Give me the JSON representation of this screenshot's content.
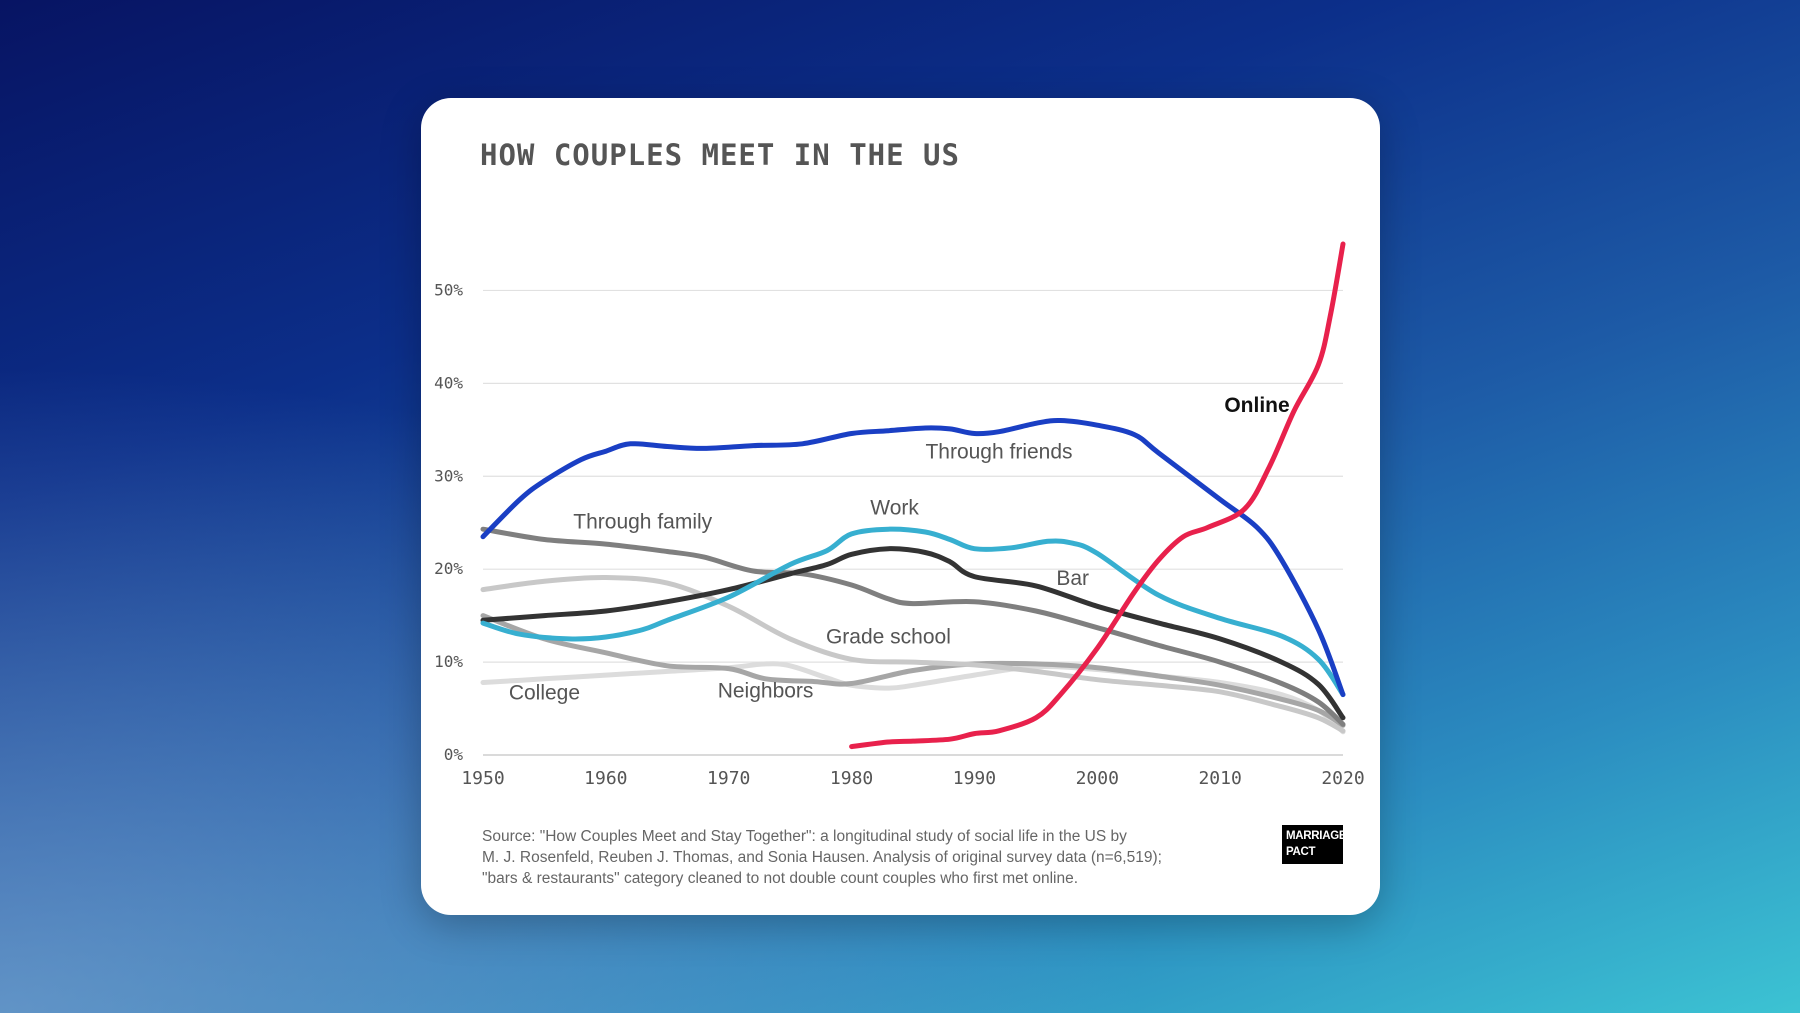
{
  "card": {
    "title": "HOW COUPLES MEET IN THE US",
    "source_lines": [
      "Source: \"How Couples Meet and Stay Together\": a longitudinal study of social life in the US by",
      "M. J. Rosenfeld, Reuben J. Thomas, and Sonia Hausen. Analysis of original survey data (n=6,519);",
      "\"bars & restaurants\" category cleaned to not double count couples who first met online."
    ],
    "logo_lines": [
      "MARRIAGE",
      "PACT"
    ]
  },
  "chart_data": {
    "type": "line",
    "title": "HOW COUPLES MEET IN THE US",
    "xlabel": "",
    "ylabel": "",
    "xlim": [
      1950,
      2020
    ],
    "ylim": [
      0,
      55
    ],
    "xticks": [
      1950,
      1960,
      1970,
      1980,
      1990,
      2000,
      2010,
      2020
    ],
    "xtick_labels": [
      "1950",
      "1960",
      "1970",
      "1980",
      "1990",
      "2000",
      "2010",
      "2020"
    ],
    "yticks": [
      0,
      10,
      20,
      30,
      40,
      50
    ],
    "ytick_labels": [
      "0%",
      "10%",
      "20%",
      "30%",
      "40%",
      "50%"
    ],
    "grid": "horizontal",
    "series": [
      {
        "name": "College",
        "color": "#dcdcdc",
        "label": "College",
        "label_at": [
          1955,
          6
        ],
        "label_color": "#555555",
        "points": [
          [
            1950,
            7.8
          ],
          [
            1955,
            8.2
          ],
          [
            1960,
            8.6
          ],
          [
            1965,
            9
          ],
          [
            1970,
            9.4
          ],
          [
            1973,
            9.8
          ],
          [
            1975,
            9.6
          ],
          [
            1978,
            8.3
          ],
          [
            1980,
            7.5
          ],
          [
            1983,
            7.2
          ],
          [
            1985,
            7.5
          ],
          [
            1990,
            8.6
          ],
          [
            1995,
            9.5
          ],
          [
            2000,
            9.2
          ],
          [
            2005,
            8.5
          ],
          [
            2010,
            7.8
          ],
          [
            2015,
            6.5
          ],
          [
            2018,
            4.8
          ],
          [
            2020,
            2.5
          ]
        ]
      },
      {
        "name": "Neighbors",
        "color": "#a6a6a6",
        "label": "Neighbors",
        "label_at": [
          1973,
          6.2
        ],
        "label_color": "#555555",
        "points": [
          [
            1950,
            15
          ],
          [
            1955,
            12.5
          ],
          [
            1960,
            11
          ],
          [
            1965,
            9.6
          ],
          [
            1970,
            9.3
          ],
          [
            1973,
            8.2
          ],
          [
            1977,
            7.9
          ],
          [
            1980,
            7.7
          ],
          [
            1985,
            9.1
          ],
          [
            1990,
            9.8
          ],
          [
            1995,
            9.8
          ],
          [
            2000,
            9.4
          ],
          [
            2005,
            8.5
          ],
          [
            2010,
            7.5
          ],
          [
            2015,
            6
          ],
          [
            2018,
            4.8
          ],
          [
            2020,
            3.2
          ]
        ]
      },
      {
        "name": "Grade school",
        "color": "#c8c8c8",
        "label": "Grade school",
        "label_at": [
          1983,
          12
        ],
        "label_color": "#555555",
        "points": [
          [
            1950,
            17.8
          ],
          [
            1955,
            18.7
          ],
          [
            1960,
            19.1
          ],
          [
            1965,
            18.5
          ],
          [
            1970,
            16
          ],
          [
            1975,
            12.5
          ],
          [
            1980,
            10.3
          ],
          [
            1985,
            10
          ],
          [
            1990,
            9.7
          ],
          [
            1995,
            9
          ],
          [
            2000,
            8.1
          ],
          [
            2005,
            7.5
          ],
          [
            2010,
            6.8
          ],
          [
            2015,
            5.2
          ],
          [
            2018,
            4
          ],
          [
            2020,
            2.6
          ]
        ]
      },
      {
        "name": "Through family",
        "color": "#7f7f7f",
        "label": "Through family",
        "label_at": [
          1963,
          24.4
        ],
        "label_color": "#555555",
        "points": [
          [
            1950,
            24.3
          ],
          [
            1955,
            23.2
          ],
          [
            1960,
            22.7
          ],
          [
            1965,
            21.9
          ],
          [
            1968,
            21.3
          ],
          [
            1972,
            19.8
          ],
          [
            1976,
            19.5
          ],
          [
            1980,
            18.3
          ],
          [
            1983,
            16.8
          ],
          [
            1985,
            16.3
          ],
          [
            1990,
            16.5
          ],
          [
            1995,
            15.5
          ],
          [
            2000,
            13.7
          ],
          [
            2005,
            11.8
          ],
          [
            2010,
            10
          ],
          [
            2015,
            7.7
          ],
          [
            2018,
            5.7
          ],
          [
            2020,
            3.3
          ]
        ]
      },
      {
        "name": "Bar",
        "color": "#333333",
        "label": "Bar",
        "label_at": [
          1998,
          18.3
        ],
        "label_color": "#555555",
        "points": [
          [
            1950,
            14.5
          ],
          [
            1955,
            15
          ],
          [
            1960,
            15.5
          ],
          [
            1965,
            16.5
          ],
          [
            1970,
            17.8
          ],
          [
            1975,
            19.5
          ],
          [
            1978,
            20.5
          ],
          [
            1980,
            21.6
          ],
          [
            1983,
            22.2
          ],
          [
            1986,
            21.8
          ],
          [
            1988,
            20.8
          ],
          [
            1990,
            19.2
          ],
          [
            1995,
            18.2
          ],
          [
            2000,
            16
          ],
          [
            2005,
            14.2
          ],
          [
            2010,
            12.5
          ],
          [
            2015,
            10
          ],
          [
            2018,
            7.6
          ],
          [
            2020,
            4
          ]
        ]
      },
      {
        "name": "Work",
        "color": "#37afd0",
        "label": "Work",
        "label_at": [
          1983.5,
          25.9
        ],
        "label_color": "#555555",
        "points": [
          [
            1950,
            14.2
          ],
          [
            1953,
            13
          ],
          [
            1957,
            12.5
          ],
          [
            1960,
            12.7
          ],
          [
            1963,
            13.5
          ],
          [
            1965,
            14.5
          ],
          [
            1970,
            17
          ],
          [
            1975,
            20.5
          ],
          [
            1978,
            22
          ],
          [
            1980,
            23.8
          ],
          [
            1983,
            24.3
          ],
          [
            1986,
            24
          ],
          [
            1988,
            23.2
          ],
          [
            1990,
            22.2
          ],
          [
            1993,
            22.3
          ],
          [
            1996,
            23
          ],
          [
            1998,
            22.8
          ],
          [
            2000,
            21.7
          ],
          [
            2005,
            17.2
          ],
          [
            2010,
            14.7
          ],
          [
            2015,
            12.8
          ],
          [
            2018,
            10.3
          ],
          [
            2020,
            6.5
          ]
        ]
      },
      {
        "name": "Through friends",
        "color": "#1a3fc4",
        "label": "Through friends",
        "label_at": [
          1992,
          31.9
        ],
        "label_color": "#555555",
        "points": [
          [
            1950,
            23.5
          ],
          [
            1953,
            27.5
          ],
          [
            1955,
            29.5
          ],
          [
            1958,
            31.8
          ],
          [
            1960,
            32.7
          ],
          [
            1962,
            33.5
          ],
          [
            1965,
            33.2
          ],
          [
            1968,
            33
          ],
          [
            1972,
            33.3
          ],
          [
            1976,
            33.5
          ],
          [
            1980,
            34.6
          ],
          [
            1983,
            34.9
          ],
          [
            1986,
            35.2
          ],
          [
            1988,
            35.1
          ],
          [
            1990,
            34.6
          ],
          [
            1992,
            34.8
          ],
          [
            1995,
            35.7
          ],
          [
            1997,
            36
          ],
          [
            2000,
            35.5
          ],
          [
            2003,
            34.5
          ],
          [
            2005,
            32.5
          ],
          [
            2010,
            27.5
          ],
          [
            2013,
            24.5
          ],
          [
            2015,
            21
          ],
          [
            2018,
            13.5
          ],
          [
            2020,
            6.5
          ]
        ]
      },
      {
        "name": "Online",
        "color": "#e8214c",
        "label": "Online",
        "label_at": [
          2013,
          36.9
        ],
        "label_color": "#111111",
        "points": [
          [
            1980,
            0.9
          ],
          [
            1983,
            1.4
          ],
          [
            1985,
            1.5
          ],
          [
            1988,
            1.7
          ],
          [
            1990,
            2.3
          ],
          [
            1992,
            2.6
          ],
          [
            1995,
            4
          ],
          [
            1997,
            6.5
          ],
          [
            2000,
            11.5
          ],
          [
            2003,
            17.5
          ],
          [
            2005,
            21
          ],
          [
            2007,
            23.5
          ],
          [
            2009,
            24.5
          ],
          [
            2012,
            26.5
          ],
          [
            2014,
            31
          ],
          [
            2016,
            37
          ],
          [
            2018,
            42
          ],
          [
            2019,
            47.5
          ],
          [
            2020,
            55
          ]
        ]
      }
    ]
  }
}
